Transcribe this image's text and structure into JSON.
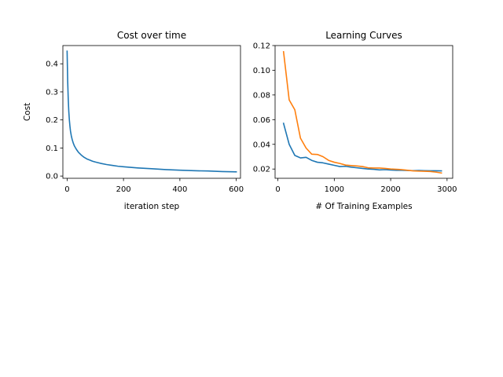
{
  "chart_data": [
    {
      "type": "line",
      "title": "Cost over time",
      "xlabel": "iteration step",
      "ylabel": "Cost",
      "xlim": [
        -15,
        615
      ],
      "ylim": [
        -0.008,
        0.465
      ],
      "xticks": [
        0,
        200,
        400,
        600
      ],
      "xtick_labels": [
        "0",
        "200",
        "400",
        "600"
      ],
      "yticks": [
        0.0,
        0.1,
        0.2,
        0.3,
        0.4
      ],
      "ytick_labels": [
        "0.0",
        "0.1",
        "0.2",
        "0.3",
        "0.4"
      ],
      "grid": false,
      "series": [
        {
          "color": "#1f77b4",
          "x": [
            0,
            2,
            4,
            6,
            8,
            10,
            12,
            15,
            18,
            22,
            26,
            30,
            35,
            40,
            50,
            60,
            70,
            80,
            90,
            100,
            120,
            140,
            160,
            180,
            200,
            250,
            300,
            350,
            400,
            450,
            500,
            550,
            600
          ],
          "y": [
            0.445,
            0.34,
            0.275,
            0.23,
            0.2,
            0.178,
            0.16,
            0.143,
            0.13,
            0.117,
            0.107,
            0.1,
            0.092,
            0.085,
            0.075,
            0.067,
            0.061,
            0.057,
            0.053,
            0.05,
            0.045,
            0.041,
            0.038,
            0.035,
            0.033,
            0.029,
            0.026,
            0.023,
            0.021,
            0.019,
            0.018,
            0.016,
            0.015
          ]
        }
      ]
    },
    {
      "type": "line",
      "title": "Learning Curves",
      "xlabel": "# Of Training Examples",
      "ylabel": "",
      "xlim": [
        -50,
        3100
      ],
      "ylim": [
        0.0125,
        0.12
      ],
      "xticks": [
        0,
        1000,
        2000,
        3000
      ],
      "xtick_labels": [
        "0",
        "1000",
        "2000",
        "3000"
      ],
      "yticks": [
        0.02,
        0.04,
        0.06,
        0.08,
        0.1,
        0.12
      ],
      "ytick_labels": [
        "0.02",
        "0.04",
        "0.06",
        "0.08",
        "0.10",
        "0.12"
      ],
      "grid": false,
      "series": [
        {
          "color": "#1f77b4",
          "x": [
            100,
            200,
            300,
            400,
            500,
            600,
            700,
            800,
            900,
            1000,
            1100,
            1200,
            1300,
            1400,
            1500,
            1600,
            1700,
            1800,
            1900,
            2000,
            2100,
            2200,
            2300,
            2400,
            2500,
            2600,
            2700,
            2800,
            2900
          ],
          "y": [
            0.057,
            0.04,
            0.031,
            0.029,
            0.0295,
            0.027,
            0.0255,
            0.025,
            0.024,
            0.023,
            0.022,
            0.0222,
            0.0215,
            0.021,
            0.0205,
            0.02,
            0.0198,
            0.0193,
            0.0195,
            0.0192,
            0.019,
            0.019,
            0.0188,
            0.0187,
            0.0188,
            0.0187,
            0.0186,
            0.0186,
            0.0185
          ]
        },
        {
          "color": "#ff7f0e",
          "x": [
            100,
            200,
            300,
            400,
            500,
            600,
            700,
            800,
            900,
            1000,
            1100,
            1200,
            1300,
            1400,
            1500,
            1600,
            1700,
            1800,
            1900,
            2000,
            2100,
            2200,
            2300,
            2400,
            2500,
            2600,
            2700,
            2800,
            2900
          ],
          "y": [
            0.115,
            0.076,
            0.068,
            0.045,
            0.037,
            0.032,
            0.0318,
            0.03,
            0.027,
            0.0255,
            0.0245,
            0.0232,
            0.0228,
            0.0225,
            0.022,
            0.021,
            0.0208,
            0.0208,
            0.0205,
            0.02,
            0.0198,
            0.0195,
            0.019,
            0.0185,
            0.0183,
            0.0182,
            0.018,
            0.0175,
            0.0168
          ]
        }
      ]
    }
  ]
}
